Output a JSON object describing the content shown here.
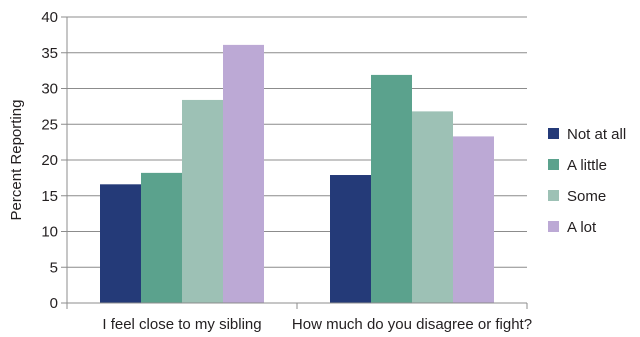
{
  "chart_data": {
    "type": "bar",
    "categories": [
      "I feel close to my sibling",
      "How much do you disagree or fight?"
    ],
    "series": [
      {
        "name": "Not at all",
        "color": "#243a78",
        "values": [
          16.6,
          17.9
        ]
      },
      {
        "name": "A little",
        "color": "#5ba28d",
        "values": [
          18.2,
          31.9
        ]
      },
      {
        "name": "Some",
        "color": "#9dc1b5",
        "values": [
          28.4,
          26.8
        ]
      },
      {
        "name": "A lot",
        "color": "#bca9d5",
        "values": [
          36.1,
          23.3
        ]
      }
    ],
    "ylabel": "Percent Reporting",
    "ylim": [
      0,
      40
    ],
    "yticks": [
      "0",
      "5",
      "10",
      "15",
      "20",
      "25",
      "30",
      "35",
      "40"
    ],
    "grid": true,
    "legend_position": "right"
  }
}
